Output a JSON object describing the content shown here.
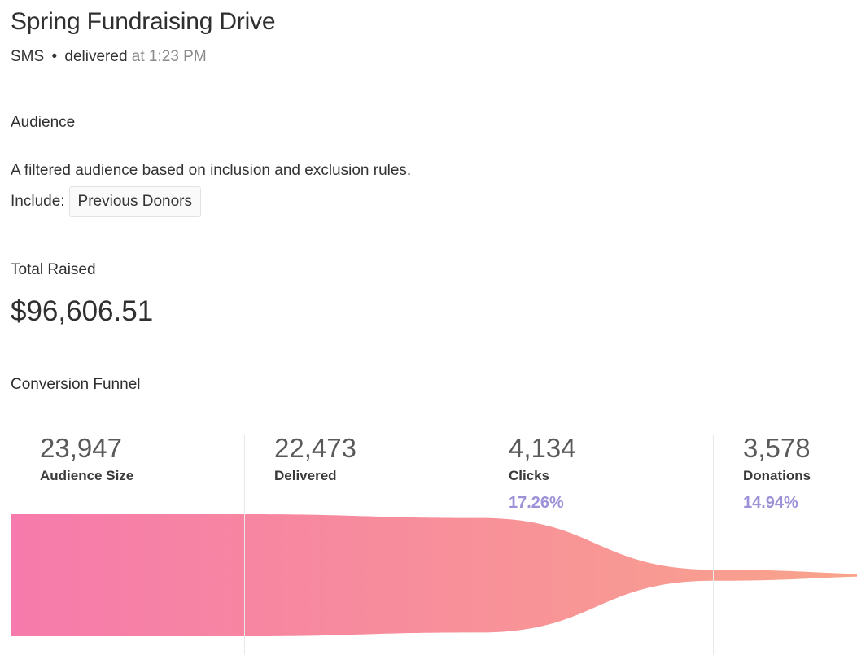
{
  "campaign": {
    "title": "Spring Fundraising Drive",
    "channel": "SMS",
    "separator": "•",
    "status": "delivered",
    "time_text": "at 1:23 PM"
  },
  "audience": {
    "heading": "Audience",
    "description": "A filtered audience based on inclusion and exclusion rules.",
    "include_label": "Include:",
    "include_tags": [
      "Previous Donors"
    ]
  },
  "total_raised": {
    "label": "Total Raised",
    "value": "$96,606.51"
  },
  "funnel": {
    "heading": "Conversion Funnel",
    "colors": {
      "start": "#f67aab",
      "end": "#f9a689",
      "divider": "#e9e9e9",
      "rate": "#9d92d8"
    }
  },
  "chart_data": {
    "type": "funnel",
    "title": "Conversion Funnel",
    "categories": [
      "Audience Size",
      "Delivered",
      "Clicks",
      "Donations"
    ],
    "values": [
      23947,
      22473,
      4134,
      3578
    ],
    "value_labels": [
      "23,947",
      "22,473",
      "4,134",
      "3,578"
    ],
    "rates": [
      "",
      "",
      "17.26%",
      "14.94%"
    ]
  }
}
